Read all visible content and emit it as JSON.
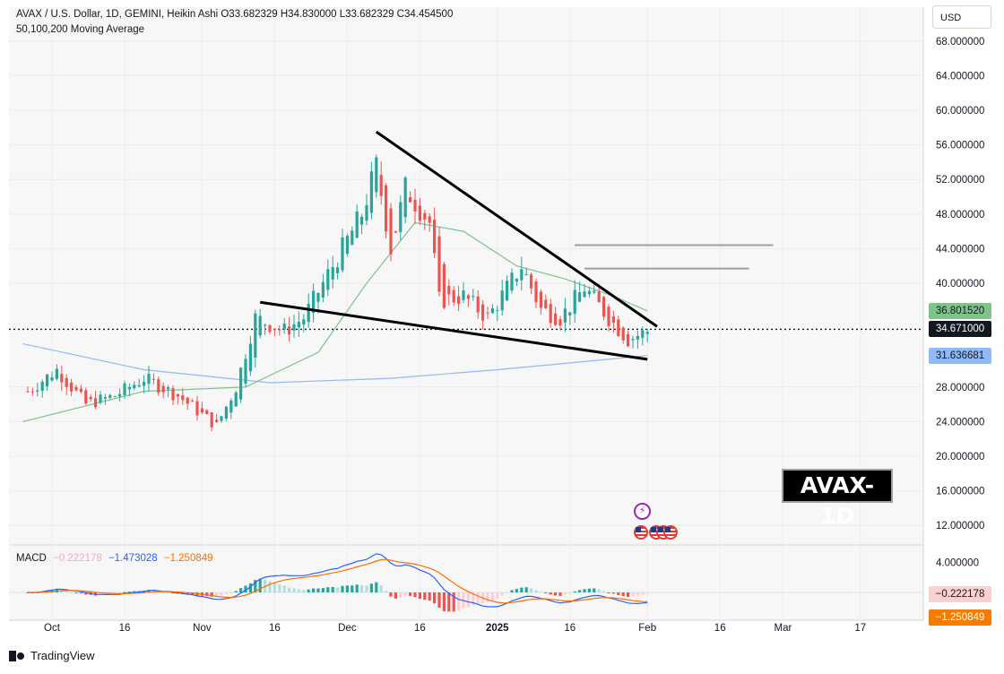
{
  "header": {
    "symbol_line": "AVAX / U.S. Dollar, 1D, GEMINI, Heikin Ashi  O33.682329  H34.830000  L33.682329  C34.454500",
    "indicator_line": "50,100,200 Moving Average"
  },
  "currency_label": "USD",
  "watermark": "AVAX-1D",
  "brand": "TradingView",
  "price_tags": {
    "ma_green": {
      "label": "36.801520",
      "value": 36.80152,
      "bg": "#7fc28a",
      "fg": "#131722"
    },
    "last_price": {
      "label": "34.671000",
      "value": 34.671,
      "bg": "#131722",
      "fg": "#ffffff"
    },
    "ma_blue": {
      "label": "31.636681",
      "value": 31.636681,
      "bg": "#90baf5",
      "fg": "#131722"
    }
  },
  "macd": {
    "label": "MACD",
    "hist_value": "−0.222178",
    "macd_value": "−1.473028",
    "signal_value": "−1.250849",
    "tag_hist": {
      "label": "−0.222178",
      "value": -0.222178,
      "bg": "#fbd0d0",
      "fg": "#131722"
    },
    "tag_signal": {
      "label": "−1.250849",
      "value": -1.250849,
      "bg": "#f57c00",
      "fg": "#ffffff"
    },
    "ticks": [
      "4.000000"
    ]
  },
  "colors": {
    "up": "#26a69a",
    "down": "#ef5350",
    "ma50": "#7fc28a",
    "ma200": "#90baf5",
    "macd_line": "#2962ff",
    "signal_line": "#ff6d00",
    "hist_up": "#26a69a",
    "hist_up_light": "#b2dfdb",
    "hist_down": "#ef5350",
    "hist_down_light": "#ffcdd2",
    "pattern_lines": "#000000",
    "target_lines": "#9e9e9e"
  },
  "chart_data": {
    "type": "candlestick",
    "title": "AVAX / U.S. Dollar, 1D, GEMINI, Heikin Ashi",
    "y_axis": {
      "ticks": [
        "68.000000",
        "64.000000",
        "60.000000",
        "56.000000",
        "52.000000",
        "48.000000",
        "44.000000",
        "40.000000",
        "28.000000",
        "24.000000",
        "20.000000",
        "16.000000",
        "12.000000"
      ],
      "range": [
        10,
        70
      ]
    },
    "x_axis": {
      "ticks": [
        "Oct",
        "16",
        "Nov",
        "16",
        "Dec",
        "16",
        "2025",
        "16",
        "Feb",
        "16",
        "Mar",
        "17"
      ],
      "bold_ticks": [
        "2025"
      ]
    },
    "anchor_points": [
      {
        "date": "2024-09-26",
        "close": 27.5
      },
      {
        "date": "2024-10-02",
        "close": 30.0
      },
      {
        "date": "2024-10-08",
        "close": 26.0
      },
      {
        "date": "2024-10-14",
        "close": 27.0
      },
      {
        "date": "2024-10-20",
        "close": 29.0
      },
      {
        "date": "2024-10-27",
        "close": 27.0
      },
      {
        "date": "2024-11-04",
        "close": 23.5
      },
      {
        "date": "2024-11-08",
        "close": 28.0
      },
      {
        "date": "2024-11-12",
        "close": 36.0
      },
      {
        "date": "2024-11-18",
        "close": 34.5
      },
      {
        "date": "2024-11-22",
        "close": 36.0
      },
      {
        "date": "2024-11-28",
        "close": 42.0
      },
      {
        "date": "2024-12-04",
        "close": 48.0
      },
      {
        "date": "2024-12-07",
        "close": 53.5
      },
      {
        "date": "2024-12-10",
        "close": 44.0
      },
      {
        "date": "2024-12-13",
        "close": 51.0
      },
      {
        "date": "2024-12-18",
        "close": 47.0
      },
      {
        "date": "2024-12-20",
        "close": 38.0
      },
      {
        "date": "2024-12-25",
        "close": 38.5
      },
      {
        "date": "2024-12-30",
        "close": 36.0
      },
      {
        "date": "2025-01-06",
        "close": 42.0
      },
      {
        "date": "2025-01-10",
        "close": 37.0
      },
      {
        "date": "2025-01-14",
        "close": 36.0
      },
      {
        "date": "2025-01-19",
        "close": 39.5
      },
      {
        "date": "2025-01-24",
        "close": 36.0
      },
      {
        "date": "2025-01-28",
        "close": 33.5
      },
      {
        "date": "2025-02-01",
        "close": 34.45
      }
    ],
    "moving_averages": {
      "ma50": [
        {
          "date": "2024-09-25",
          "value": 24.0
        },
        {
          "date": "2024-10-20",
          "value": 27.5
        },
        {
          "date": "2024-11-10",
          "value": 28.0
        },
        {
          "date": "2024-11-25",
          "value": 32.0
        },
        {
          "date": "2024-12-05",
          "value": 40.0
        },
        {
          "date": "2024-12-15",
          "value": 47.0
        },
        {
          "date": "2024-12-25",
          "value": 46.0
        },
        {
          "date": "2025-01-05",
          "value": 42.0
        },
        {
          "date": "2025-01-15",
          "value": 40.5
        },
        {
          "date": "2025-01-25",
          "value": 38.5
        },
        {
          "date": "2025-02-01",
          "value": 36.8
        }
      ],
      "ma200": [
        {
          "date": "2024-09-25",
          "value": 33.0
        },
        {
          "date": "2024-10-20",
          "value": 30.0
        },
        {
          "date": "2024-11-15",
          "value": 28.5
        },
        {
          "date": "2024-12-10",
          "value": 29.0
        },
        {
          "date": "2025-01-01",
          "value": 30.0
        },
        {
          "date": "2025-01-20",
          "value": 31.0
        },
        {
          "date": "2025-02-01",
          "value": 31.64
        }
      ]
    },
    "annotations": {
      "falling_wedge_upper": [
        {
          "date": "2024-12-07",
          "value": 57.5
        },
        {
          "date": "2025-02-03",
          "value": 35.0
        }
      ],
      "falling_wedge_lower": [
        {
          "date": "2024-11-13",
          "value": 37.8
        },
        {
          "date": "2025-02-01",
          "value": 31.2
        }
      ],
      "target_lines": [
        {
          "from": "2025-01-17",
          "to": "2025-02-27",
          "value": 44.4
        },
        {
          "from": "2025-01-19",
          "to": "2025-02-22",
          "value": 41.7
        }
      ]
    },
    "last_price": 34.671,
    "ohlc_last": {
      "open": 33.682329,
      "high": 34.83,
      "low": 33.682329,
      "close": 34.4545
    }
  }
}
